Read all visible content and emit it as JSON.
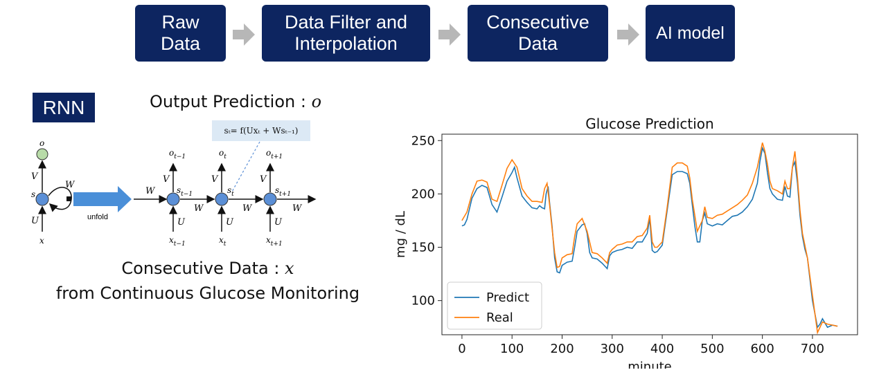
{
  "pipeline": {
    "steps": [
      "Raw\nData",
      "Data Filter and\nInterpolation",
      "Consecutive\nData",
      "AI model"
    ],
    "box_color": "#0d2560",
    "arrow_color": "#b7b7b7"
  },
  "rnn": {
    "badge": "RNN",
    "output_caption": "Output Prediction : ",
    "output_var": "o",
    "formula": "sₜ= f(Uxₜ + Wsₜ₋₁)",
    "unfold_label": "unfold",
    "input_caption_line1": "Consecutive Data : ",
    "input_var": "x",
    "input_caption_line2": "from Continuous Glucose Monitoring",
    "labels": {
      "o": "o",
      "s": "s",
      "x": "x",
      "V": "V",
      "U": "U",
      "W": "W",
      "o_prev": "o",
      "o_prev_sub": "t−1",
      "o_cur": "o",
      "o_cur_sub": "t",
      "o_next": "o",
      "o_next_sub": "t+1",
      "s_prev": "s",
      "s_prev_sub": "t−1",
      "s_cur": "s",
      "s_cur_sub": "t",
      "s_next": "s",
      "s_next_sub": "t+1",
      "x_prev": "x",
      "x_prev_sub": "t−1",
      "x_cur": "x",
      "x_cur_sub": "t",
      "x_next": "x",
      "x_next_sub": "t+1"
    }
  },
  "chart_data": {
    "type": "line",
    "title": "Glucose Prediction",
    "xlabel": "minute",
    "ylabel": "mg / dL",
    "xlim": [
      -40,
      790
    ],
    "ylim": [
      68,
      256
    ],
    "xticks": [
      0,
      100,
      200,
      300,
      400,
      500,
      600,
      700
    ],
    "yticks": [
      100,
      150,
      200,
      250
    ],
    "legend_position": "lower-left",
    "series": [
      {
        "name": "Predict",
        "color": "#1f77b4",
        "points": [
          [
            0,
            170
          ],
          [
            5,
            171
          ],
          [
            10,
            176
          ],
          [
            20,
            196
          ],
          [
            30,
            205
          ],
          [
            40,
            208
          ],
          [
            50,
            206
          ],
          [
            60,
            190
          ],
          [
            70,
            183
          ],
          [
            80,
            197
          ],
          [
            90,
            212
          ],
          [
            100,
            220
          ],
          [
            105,
            225
          ],
          [
            110,
            215
          ],
          [
            120,
            198
          ],
          [
            130,
            192
          ],
          [
            140,
            187
          ],
          [
            150,
            186
          ],
          [
            155,
            189
          ],
          [
            160,
            187
          ],
          [
            165,
            186
          ],
          [
            168,
            200
          ],
          [
            172,
            207
          ],
          [
            175,
            192
          ],
          [
            180,
            170
          ],
          [
            185,
            140
          ],
          [
            190,
            127
          ],
          [
            195,
            126
          ],
          [
            200,
            133
          ],
          [
            210,
            136
          ],
          [
            220,
            137
          ],
          [
            225,
            150
          ],
          [
            230,
            165
          ],
          [
            240,
            171
          ],
          [
            245,
            172
          ],
          [
            250,
            163
          ],
          [
            255,
            145
          ],
          [
            260,
            140
          ],
          [
            270,
            139
          ],
          [
            280,
            135
          ],
          [
            290,
            130
          ],
          [
            295,
            142
          ],
          [
            300,
            145
          ],
          [
            310,
            147
          ],
          [
            320,
            148
          ],
          [
            330,
            150
          ],
          [
            340,
            149
          ],
          [
            350,
            155
          ],
          [
            360,
            155
          ],
          [
            370,
            163
          ],
          [
            375,
            177
          ],
          [
            380,
            147
          ],
          [
            385,
            145
          ],
          [
            390,
            146
          ],
          [
            400,
            152
          ],
          [
            410,
            185
          ],
          [
            420,
            218
          ],
          [
            430,
            221
          ],
          [
            440,
            221
          ],
          [
            450,
            219
          ],
          [
            455,
            210
          ],
          [
            460,
            190
          ],
          [
            465,
            170
          ],
          [
            470,
            155
          ],
          [
            475,
            155
          ],
          [
            480,
            175
          ],
          [
            485,
            182
          ],
          [
            490,
            172
          ],
          [
            500,
            170
          ],
          [
            510,
            172
          ],
          [
            520,
            171
          ],
          [
            530,
            175
          ],
          [
            540,
            179
          ],
          [
            550,
            180
          ],
          [
            560,
            183
          ],
          [
            570,
            188
          ],
          [
            580,
            195
          ],
          [
            590,
            210
          ],
          [
            595,
            230
          ],
          [
            600,
            243
          ],
          [
            605,
            238
          ],
          [
            610,
            220
          ],
          [
            615,
            205
          ],
          [
            620,
            200
          ],
          [
            630,
            195
          ],
          [
            640,
            194
          ],
          [
            645,
            207
          ],
          [
            650,
            198
          ],
          [
            655,
            197
          ],
          [
            660,
            225
          ],
          [
            665,
            230
          ],
          [
            670,
            210
          ],
          [
            675,
            180
          ],
          [
            680,
            160
          ],
          [
            685,
            148
          ],
          [
            690,
            140
          ],
          [
            700,
            100
          ],
          [
            710,
            75
          ],
          [
            715,
            78
          ],
          [
            720,
            83
          ],
          [
            730,
            75
          ],
          [
            740,
            77
          ],
          [
            750,
            76
          ]
        ]
      },
      {
        "name": "Real",
        "color": "#ff7f0e",
        "points": [
          [
            0,
            175
          ],
          [
            10,
            183
          ],
          [
            20,
            200
          ],
          [
            30,
            212
          ],
          [
            40,
            213
          ],
          [
            50,
            211
          ],
          [
            60,
            195
          ],
          [
            70,
            193
          ],
          [
            80,
            208
          ],
          [
            90,
            224
          ],
          [
            100,
            232
          ],
          [
            110,
            225
          ],
          [
            120,
            205
          ],
          [
            130,
            198
          ],
          [
            140,
            193
          ],
          [
            150,
            193
          ],
          [
            160,
            192
          ],
          [
            165,
            205
          ],
          [
            170,
            210
          ],
          [
            175,
            190
          ],
          [
            185,
            145
          ],
          [
            190,
            131
          ],
          [
            195,
            132
          ],
          [
            200,
            140
          ],
          [
            210,
            143
          ],
          [
            220,
            144
          ],
          [
            225,
            160
          ],
          [
            230,
            172
          ],
          [
            240,
            177
          ],
          [
            250,
            165
          ],
          [
            260,
            145
          ],
          [
            270,
            144
          ],
          [
            280,
            140
          ],
          [
            290,
            135
          ],
          [
            295,
            145
          ],
          [
            300,
            148
          ],
          [
            310,
            152
          ],
          [
            320,
            153
          ],
          [
            330,
            155
          ],
          [
            340,
            155
          ],
          [
            350,
            160
          ],
          [
            360,
            161
          ],
          [
            370,
            168
          ],
          [
            375,
            180
          ],
          [
            380,
            155
          ],
          [
            385,
            150
          ],
          [
            390,
            150
          ],
          [
            400,
            155
          ],
          [
            410,
            188
          ],
          [
            420,
            225
          ],
          [
            430,
            229
          ],
          [
            440,
            229
          ],
          [
            450,
            226
          ],
          [
            455,
            215
          ],
          [
            460,
            195
          ],
          [
            470,
            165
          ],
          [
            480,
            175
          ],
          [
            485,
            188
          ],
          [
            490,
            178
          ],
          [
            500,
            177
          ],
          [
            510,
            180
          ],
          [
            520,
            181
          ],
          [
            530,
            184
          ],
          [
            540,
            187
          ],
          [
            550,
            190
          ],
          [
            560,
            194
          ],
          [
            570,
            199
          ],
          [
            580,
            210
          ],
          [
            590,
            225
          ],
          [
            600,
            248
          ],
          [
            605,
            240
          ],
          [
            610,
            228
          ],
          [
            615,
            212
          ],
          [
            620,
            205
          ],
          [
            630,
            203
          ],
          [
            640,
            200
          ],
          [
            645,
            212
          ],
          [
            650,
            205
          ],
          [
            655,
            205
          ],
          [
            660,
            225
          ],
          [
            665,
            240
          ],
          [
            670,
            215
          ],
          [
            675,
            185
          ],
          [
            680,
            163
          ],
          [
            690,
            140
          ],
          [
            700,
            105
          ],
          [
            710,
            70
          ],
          [
            720,
            80
          ],
          [
            730,
            78
          ],
          [
            740,
            77
          ],
          [
            750,
            76
          ]
        ]
      }
    ]
  }
}
